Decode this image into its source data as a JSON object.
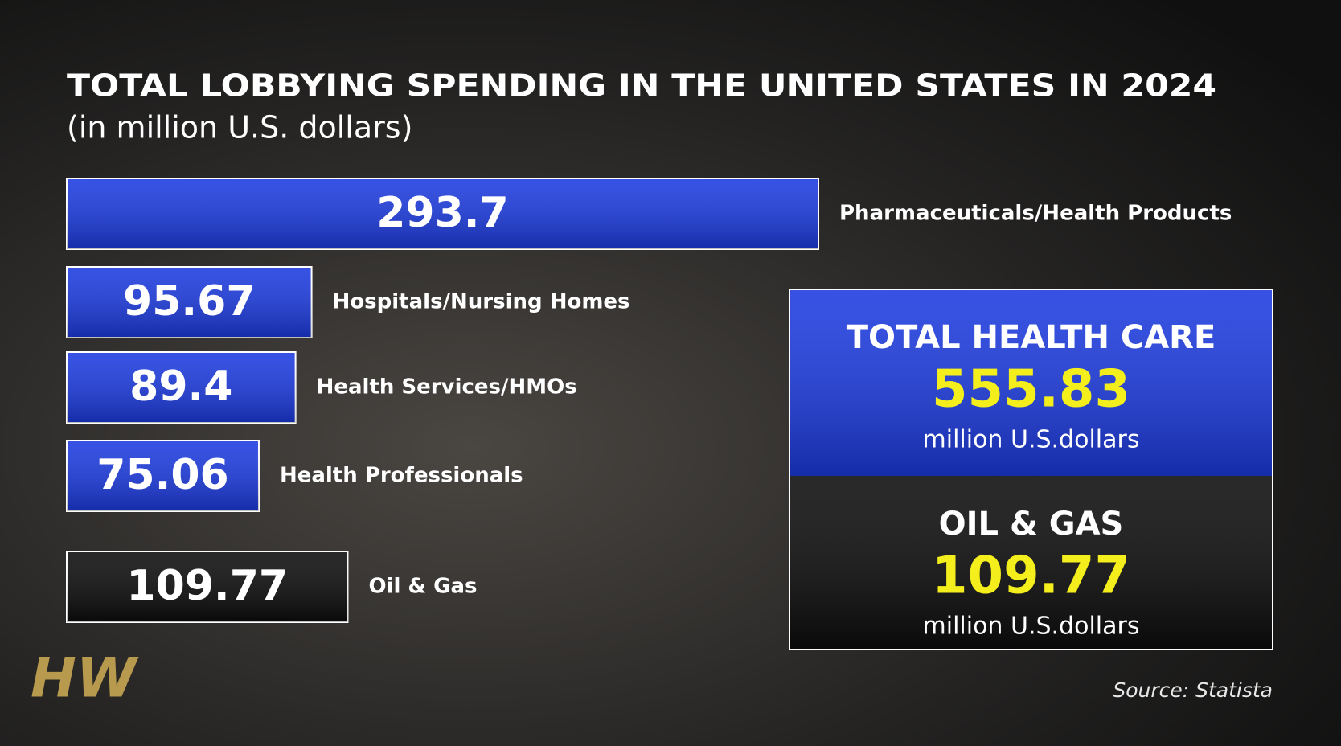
{
  "chart_data": {
    "type": "bar",
    "orientation": "horizontal",
    "title": "TOTAL LOBBYING SPENDING IN THE UNITED STATES IN 2024",
    "subtitle": "(in million U.S. dollars)",
    "categories": [
      "Pharmaceuticals/Health Products",
      "Hospitals/Nursing Homes",
      "Health Services/HMOs",
      "Health Professionals",
      "Oil & Gas"
    ],
    "values": [
      293.7,
      95.67,
      89.4,
      75.06,
      109.77
    ],
    "colors": [
      "#1c3be0",
      "#1c3be0",
      "#1c3be0",
      "#1c3be0",
      "#0c0c0c"
    ],
    "summary": [
      {
        "label": "TOTAL HEALTH CARE",
        "value": 555.83,
        "unit": "million U.S.dollars",
        "color": "#1c3be0"
      },
      {
        "label": "OIL & GAS",
        "value": 109.77,
        "unit": "million U.S.dollars",
        "color": "#0c0c0c"
      }
    ],
    "source": "Source: Statista",
    "logo": "HW"
  }
}
